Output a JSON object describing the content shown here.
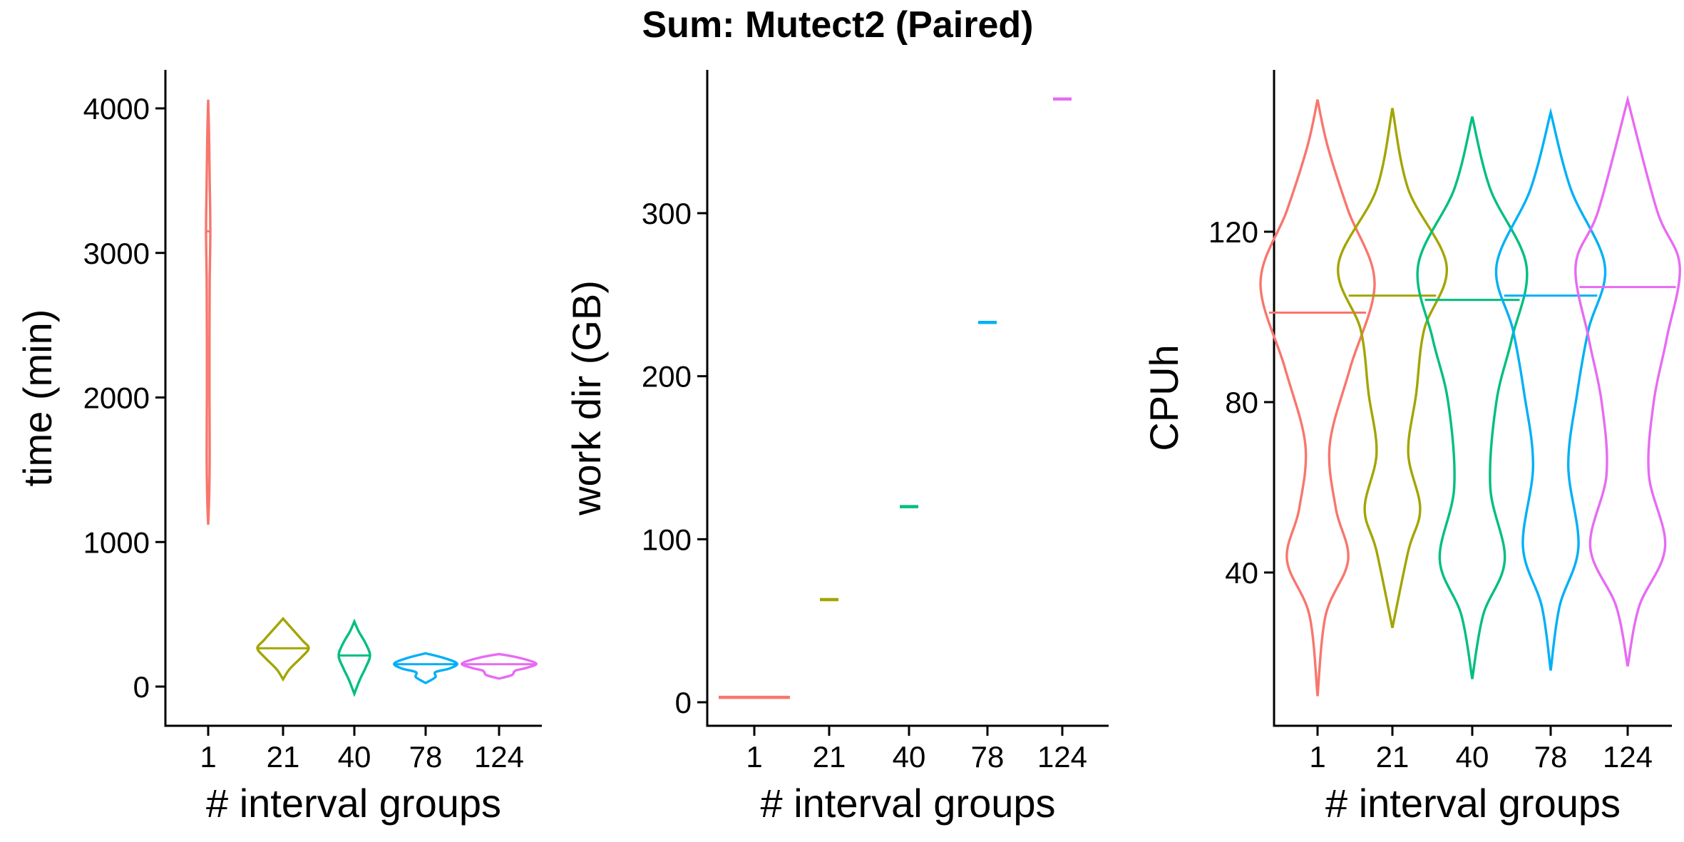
{
  "chart_data": {
    "type": "violin",
    "title": "Sum: Mutect2 (Paired)",
    "categories": [
      "1",
      "21",
      "40",
      "78",
      "124"
    ],
    "colors": [
      "#F8766D",
      "#A3A500",
      "#00BF7D",
      "#00B0F6",
      "#E76BF3"
    ],
    "panels": [
      {
        "ylabel": "time (min)",
        "xlabel": "# interval groups",
        "ylim": [
          -260,
          4250
        ],
        "yticks": [
          "0",
          "1000",
          "2000",
          "3000",
          "4000"
        ],
        "groups": [
          {
            "category": "1",
            "min": 1120,
            "max": 4060,
            "median": 3150,
            "density": [
              [
                1120,
                0.6
              ],
              [
                1300,
                1.0
              ],
              [
                1600,
                1.6
              ],
              [
                2000,
                1.4
              ],
              [
                2400,
                1.4
              ],
              [
                2800,
                1.6
              ],
              [
                3150,
                2.3
              ],
              [
                3500,
                1.6
              ],
              [
                3800,
                1.0
              ],
              [
                4060,
                0.6
              ]
            ]
          },
          {
            "category": "21",
            "min": 50,
            "max": 470,
            "median": 265,
            "density": [
              [
                50,
                1
              ],
              [
                120,
                5
              ],
              [
                200,
                14
              ],
              [
                265,
                20
              ],
              [
                320,
                15
              ],
              [
                400,
                7
              ],
              [
                470,
                1.5
              ]
            ]
          },
          {
            "category": "40",
            "min": -50,
            "max": 450,
            "median": 215,
            "density": [
              [
                -50,
                1
              ],
              [
                50,
                5
              ],
              [
                130,
                10
              ],
              [
                215,
                14
              ],
              [
                300,
                10
              ],
              [
                380,
                4
              ],
              [
                450,
                1.5
              ]
            ]
          },
          {
            "category": "78",
            "min": 25,
            "max": 230,
            "median": 155,
            "density": [
              [
                25,
                1
              ],
              [
                65,
                9
              ],
              [
                100,
                9
              ],
              [
                125,
                22
              ],
              [
                160,
                29
              ],
              [
                200,
                16
              ],
              [
                230,
                1
              ]
            ]
          },
          {
            "category": "124",
            "min": 55,
            "max": 225,
            "median": 155,
            "density": [
              [
                55,
                1
              ],
              [
                80,
                11
              ],
              [
                110,
                14
              ],
              [
                130,
                24
              ],
              [
                160,
                32
              ],
              [
                200,
                17
              ],
              [
                225,
                1
              ]
            ]
          }
        ]
      },
      {
        "ylabel": "work dir (GB)",
        "xlabel": "# interval groups",
        "ylim": [
          -15,
          390
        ],
        "yticks": [
          "0",
          "100",
          "200",
          "300"
        ],
        "groups": [
          {
            "category": "1",
            "value": 3
          },
          {
            "category": "21",
            "value": 63
          },
          {
            "category": "40",
            "value": 120
          },
          {
            "category": "78",
            "value": 233
          },
          {
            "category": "124",
            "value": 370
          }
        ]
      },
      {
        "ylabel": "CPUh",
        "xlabel": "# interval groups",
        "ylim": [
          5,
          160
        ],
        "yticks": [
          "40",
          "80",
          "120"
        ],
        "groups": [
          {
            "category": "1",
            "min": 11,
            "max": 151,
            "median": 101,
            "density": [
              [
                11,
                0.5
              ],
              [
                30,
                4
              ],
              [
                43,
                15
              ],
              [
                55,
                9
              ],
              [
                70,
                6
              ],
              [
                88,
                16
              ],
              [
                108,
                28
              ],
              [
                125,
                15
              ],
              [
                140,
                5
              ],
              [
                151,
                0.5
              ]
            ]
          },
          {
            "category": "21",
            "min": 27,
            "max": 149,
            "median": 105,
            "density": [
              [
                27,
                0.5
              ],
              [
                45,
                12
              ],
              [
                55,
                21
              ],
              [
                68,
                12
              ],
              [
                82,
                18
              ],
              [
                97,
                24
              ],
              [
                112,
                41
              ],
              [
                130,
                12
              ],
              [
                149,
                0.5
              ]
            ]
          },
          {
            "category": "40",
            "min": 15,
            "max": 147,
            "median": 104,
            "density": [
              [
                15,
                0.5
              ],
              [
                30,
                9
              ],
              [
                43,
                27
              ],
              [
                60,
                15
              ],
              [
                80,
                20
              ],
              [
                95,
                33
              ],
              [
                112,
                45
              ],
              [
                130,
                15
              ],
              [
                147,
                0.5
              ]
            ]
          },
          {
            "category": "78",
            "min": 17,
            "max": 148,
            "median": 105,
            "density": [
              [
                17,
                0.5
              ],
              [
                32,
                7
              ],
              [
                46,
                22
              ],
              [
                65,
                14
              ],
              [
                82,
                21
              ],
              [
                97,
                30
              ],
              [
                112,
                43
              ],
              [
                130,
                16
              ],
              [
                148,
                0.5
              ]
            ]
          },
          {
            "category": "124",
            "min": 18,
            "max": 151,
            "median": 107,
            "density": [
              [
                18,
                0.5
              ],
              [
                32,
                7
              ],
              [
                46,
                23
              ],
              [
                63,
                13
              ],
              [
                80,
                16
              ],
              [
                95,
                24
              ],
              [
                112,
                32
              ],
              [
                125,
                18
              ],
              [
                151,
                0.5
              ]
            ]
          }
        ]
      }
    ]
  }
}
